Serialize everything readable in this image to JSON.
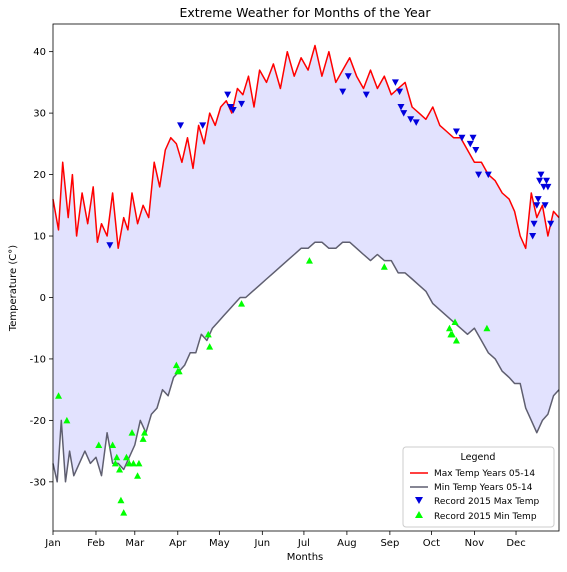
{
  "chart_data": {
    "type": "line",
    "title": "Extreme Weather for Months of the Year",
    "xlabel": "Months",
    "ylabel": "Temperature (C°)",
    "xlim": [
      1,
      366
    ],
    "ylim": [
      -38,
      44.5
    ],
    "yticks": [
      -30,
      -20,
      -10,
      0,
      10,
      20,
      30,
      40
    ],
    "xticks": [
      {
        "day": 1,
        "label": "Jan"
      },
      {
        "day": 32,
        "label": "Feb"
      },
      {
        "day": 60,
        "label": "Mar"
      },
      {
        "day": 91,
        "label": "Apr"
      },
      {
        "day": 121,
        "label": "May"
      },
      {
        "day": 152,
        "label": "Jun"
      },
      {
        "day": 182,
        "label": "Jul"
      },
      {
        "day": 213,
        "label": "Aug"
      },
      {
        "day": 244,
        "label": "Sep"
      },
      {
        "day": 274,
        "label": "Oct"
      },
      {
        "day": 305,
        "label": "Nov"
      },
      {
        "day": 335,
        "label": "Dec"
      }
    ],
    "grid": false,
    "fill_between": {
      "color": "#e2e2fe"
    },
    "series": [
      {
        "name": "Max Temp Years 05-14",
        "kind": "line",
        "color": "#ff0000",
        "x": [
          1,
          5,
          8,
          12,
          15,
          18,
          22,
          26,
          30,
          33,
          36,
          40,
          44,
          48,
          52,
          55,
          58,
          62,
          66,
          70,
          74,
          78,
          82,
          86,
          90,
          94,
          98,
          102,
          106,
          110,
          114,
          118,
          122,
          126,
          130,
          134,
          138,
          142,
          146,
          150,
          155,
          160,
          165,
          170,
          175,
          180,
          185,
          190,
          195,
          200,
          205,
          210,
          215,
          220,
          225,
          230,
          235,
          240,
          245,
          250,
          255,
          260,
          265,
          270,
          275,
          280,
          285,
          290,
          295,
          300,
          305,
          310,
          315,
          320,
          325,
          330,
          334,
          338,
          342,
          346,
          350,
          354,
          358,
          362,
          366
        ],
        "y": [
          16,
          11,
          22,
          13,
          20,
          10,
          17,
          12,
          18,
          9,
          12,
          10,
          17,
          8,
          13,
          11,
          17,
          12,
          15,
          13,
          22,
          18,
          24,
          26,
          25,
          22,
          26,
          21,
          28,
          25,
          30,
          28,
          31,
          32,
          30,
          34,
          33,
          36,
          31,
          37,
          35,
          38,
          34,
          40,
          36,
          39,
          37,
          41,
          36,
          40,
          35,
          37,
          39,
          36,
          34,
          37,
          34,
          36,
          33,
          34,
          35,
          31,
          30,
          29,
          31,
          28,
          27,
          26,
          26,
          24,
          22,
          22,
          20,
          19,
          17,
          16,
          14,
          10,
          8,
          17,
          13,
          15,
          10,
          14,
          13
        ]
      },
      {
        "name": "Min Temp Years 05-14",
        "kind": "line",
        "color": "#5f5f70",
        "x": [
          1,
          4,
          7,
          10,
          13,
          16,
          20,
          24,
          28,
          32,
          36,
          40,
          44,
          48,
          52,
          56,
          60,
          64,
          68,
          72,
          76,
          80,
          84,
          88,
          92,
          96,
          100,
          104,
          108,
          112,
          116,
          120,
          124,
          128,
          132,
          136,
          140,
          145,
          150,
          155,
          160,
          165,
          170,
          175,
          180,
          185,
          190,
          195,
          200,
          205,
          210,
          215,
          220,
          225,
          230,
          235,
          240,
          245,
          250,
          255,
          260,
          265,
          270,
          275,
          280,
          285,
          290,
          295,
          300,
          305,
          310,
          315,
          320,
          325,
          330,
          334,
          338,
          342,
          346,
          350,
          354,
          358,
          362,
          366
        ],
        "y": [
          -27,
          -30,
          -20,
          -30,
          -25,
          -29,
          -27,
          -25,
          -27,
          -26,
          -29,
          -22,
          -27,
          -27,
          -28,
          -26,
          -24,
          -20,
          -22,
          -19,
          -18,
          -15,
          -16,
          -13,
          -12,
          -11,
          -9,
          -9,
          -6,
          -7,
          -5,
          -4,
          -3,
          -2,
          -1,
          0,
          0,
          1,
          2,
          3,
          4,
          5,
          6,
          7,
          8,
          8,
          9,
          9,
          8,
          8,
          9,
          9,
          8,
          7,
          6,
          7,
          6,
          6,
          4,
          4,
          3,
          2,
          1,
          -1,
          -2,
          -3,
          -4,
          -5,
          -6,
          -5,
          -7,
          -9,
          -10,
          -12,
          -13,
          -14,
          -14,
          -18,
          -20,
          -22,
          -20,
          -19,
          -16,
          -15
        ]
      },
      {
        "name": "Record 2015 Max Temp",
        "kind": "scatter",
        "marker": "triangle-down",
        "color": "#0000dd",
        "x": [
          42,
          93,
          109,
          127,
          129,
          131,
          137,
          210,
          214,
          227,
          248,
          251,
          252,
          254,
          259,
          263,
          292,
          296,
          302,
          304,
          306,
          308,
          315,
          347,
          348,
          350,
          351,
          352,
          353,
          355,
          356,
          357,
          358,
          360
        ],
        "y": [
          8.5,
          28,
          28,
          33,
          31,
          30.5,
          31.5,
          33.5,
          36,
          33,
          35,
          33.5,
          31,
          30,
          29,
          28.5,
          27,
          26,
          25,
          26,
          24,
          20,
          20,
          10,
          12,
          15,
          16,
          19,
          20,
          18,
          15,
          19,
          18,
          12
        ]
      },
      {
        "name": "Record 2015 Min Temp",
        "kind": "scatter",
        "marker": "triangle-up",
        "color": "#00ff00",
        "x": [
          5,
          11,
          34,
          44,
          46,
          47,
          49,
          50,
          52,
          54,
          56,
          58,
          59,
          62,
          63,
          66,
          67,
          90,
          91,
          92,
          113,
          114,
          137,
          186,
          240,
          287,
          288,
          289,
          291,
          292,
          314
        ],
        "y": [
          -16,
          -20,
          -24,
          -24,
          -27,
          -26,
          -28,
          -33,
          -35,
          -26,
          -27,
          -22,
          -27,
          -29,
          -27,
          -23,
          -22,
          -11,
          -12,
          -12,
          -6,
          -8,
          -1,
          6,
          5,
          -5,
          -6,
          -6,
          -4,
          -7,
          -5
        ]
      }
    ],
    "legend": {
      "title": "Legend",
      "placement": "lower right",
      "entries": [
        "Max Temp Years 05-14",
        "Min Temp Years 05-14",
        "Record 2015 Max Temp",
        "Record 2015 Min Temp"
      ]
    }
  }
}
